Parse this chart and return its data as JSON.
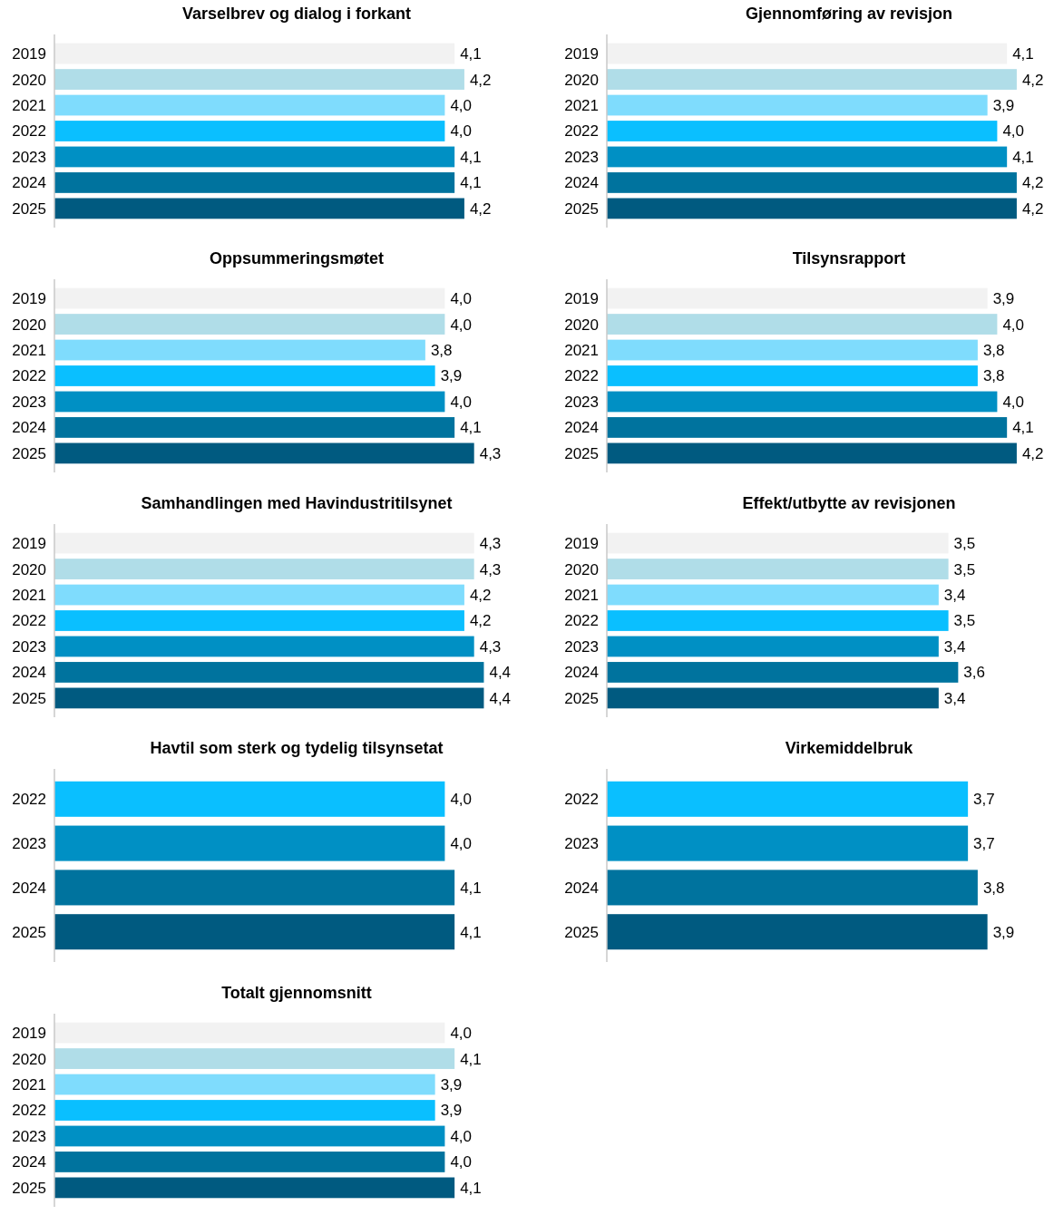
{
  "chart_data": [
    {
      "type": "bar",
      "orientation": "horizontal",
      "title": "Varselbrev og dialog i forkant",
      "categories": [
        "2019",
        "2020",
        "2021",
        "2022",
        "2023",
        "2024",
        "2025"
      ],
      "values": [
        4.1,
        4.2,
        4.0,
        4.0,
        4.1,
        4.1,
        4.2
      ],
      "value_labels": [
        "4,1",
        "4,2",
        "4,0",
        "4,0",
        "4,1",
        "4,1",
        "4,2"
      ],
      "colors": [
        "#f2f2f2",
        "#b0dde8",
        "#7fdcfd",
        "#0abfff",
        "#0090c4",
        "#00739e",
        "#005a80"
      ],
      "tick_labels": "y"
    },
    {
      "type": "bar",
      "orientation": "horizontal",
      "title": "Gjennomføring av revisjon",
      "categories": [
        "2019",
        "2020",
        "2021",
        "2022",
        "2023",
        "2024",
        "2025"
      ],
      "values": [
        4.1,
        4.2,
        3.9,
        4.0,
        4.1,
        4.2,
        4.2
      ],
      "value_labels": [
        "4,1",
        "4,2",
        "3,9",
        "4,0",
        "4,1",
        "4,2",
        "4,2"
      ],
      "colors": [
        "#f2f2f2",
        "#b0dde8",
        "#7fdcfd",
        "#0abfff",
        "#0090c4",
        "#00739e",
        "#005a80"
      ],
      "tick_labels": "y"
    },
    {
      "type": "bar",
      "orientation": "horizontal",
      "title": "Oppsummeringsmøtet",
      "categories": [
        "2019",
        "2020",
        "2021",
        "2022",
        "2023",
        "2024",
        "2025"
      ],
      "values": [
        4.0,
        4.0,
        3.8,
        3.9,
        4.0,
        4.1,
        4.3
      ],
      "value_labels": [
        "4,0",
        "4,0",
        "3,8",
        "3,9",
        "4,0",
        "4,1",
        "4,3"
      ],
      "colors": [
        "#f2f2f2",
        "#b0dde8",
        "#7fdcfd",
        "#0abfff",
        "#0090c4",
        "#00739e",
        "#005a80"
      ],
      "tick_labels": "y"
    },
    {
      "type": "bar",
      "orientation": "horizontal",
      "title": "Tilsynsrapport",
      "categories": [
        "2019",
        "2020",
        "2021",
        "2022",
        "2023",
        "2024",
        "2025"
      ],
      "values": [
        3.9,
        4.0,
        3.8,
        3.8,
        4.0,
        4.1,
        4.2
      ],
      "value_labels": [
        "3,9",
        "4,0",
        "3,8",
        "3,8",
        "4,0",
        "4,1",
        "4,2"
      ],
      "colors": [
        "#f2f2f2",
        "#b0dde8",
        "#7fdcfd",
        "#0abfff",
        "#0090c4",
        "#00739e",
        "#005a80"
      ],
      "tick_labels": "y"
    },
    {
      "type": "bar",
      "orientation": "horizontal",
      "title": "Samhandlingen med Havindustritilsynet",
      "categories": [
        "2019",
        "2020",
        "2021",
        "2022",
        "2023",
        "2024",
        "2025"
      ],
      "values": [
        4.3,
        4.3,
        4.2,
        4.2,
        4.3,
        4.4,
        4.4
      ],
      "value_labels": [
        "4,3",
        "4,3",
        "4,2",
        "4,2",
        "4,3",
        "4,4",
        "4,4"
      ],
      "colors": [
        "#f2f2f2",
        "#b0dde8",
        "#7fdcfd",
        "#0abfff",
        "#0090c4",
        "#00739e",
        "#005a80"
      ],
      "tick_labels": "y"
    },
    {
      "type": "bar",
      "orientation": "horizontal",
      "title": "Effekt/utbytte av revisjonen",
      "categories": [
        "2019",
        "2020",
        "2021",
        "2022",
        "2023",
        "2024",
        "2025"
      ],
      "values": [
        3.5,
        3.5,
        3.4,
        3.5,
        3.4,
        3.6,
        3.4
      ],
      "value_labels": [
        "3,5",
        "3,5",
        "3,4",
        "3,5",
        "3,4",
        "3,6",
        "3,4"
      ],
      "colors": [
        "#f2f2f2",
        "#b0dde8",
        "#7fdcfd",
        "#0abfff",
        "#0090c4",
        "#00739e",
        "#005a80"
      ],
      "tick_labels": "y"
    },
    {
      "type": "bar",
      "orientation": "horizontal",
      "title": "Havtil som sterk og tydelig tilsynsetat",
      "categories": [
        "2022",
        "2023",
        "2024",
        "2025"
      ],
      "values": [
        4.0,
        4.0,
        4.1,
        4.1
      ],
      "value_labels": [
        "4,0",
        "4,0",
        "4,1",
        "4,1"
      ],
      "colors": [
        "#0abfff",
        "#0090c4",
        "#00739e",
        "#005a80"
      ],
      "tick_labels": "y"
    },
    {
      "type": "bar",
      "orientation": "horizontal",
      "title": "Virkemiddelbruk",
      "categories": [
        "2022",
        "2023",
        "2024",
        "2025"
      ],
      "values": [
        3.7,
        3.7,
        3.8,
        3.9
      ],
      "value_labels": [
        "3,7",
        "3,7",
        "3,8",
        "3,9"
      ],
      "colors": [
        "#0abfff",
        "#0090c4",
        "#00739e",
        "#005a80"
      ],
      "tick_labels": "y"
    },
    {
      "type": "bar",
      "orientation": "horizontal",
      "title": "Totalt gjennomsnitt",
      "categories": [
        "2019",
        "2020",
        "2021",
        "2022",
        "2023",
        "2024",
        "2025"
      ],
      "values": [
        4.0,
        4.1,
        3.9,
        3.9,
        4.0,
        4.0,
        4.1
      ],
      "value_labels": [
        "4,0",
        "4,1",
        "3,9",
        "3,9",
        "4,0",
        "4,0",
        "4,1"
      ],
      "colors": [
        "#f2f2f2",
        "#b0dde8",
        "#7fdcfd",
        "#0abfff",
        "#0090c4",
        "#00739e",
        "#005a80"
      ],
      "tick_labels": "y"
    }
  ]
}
